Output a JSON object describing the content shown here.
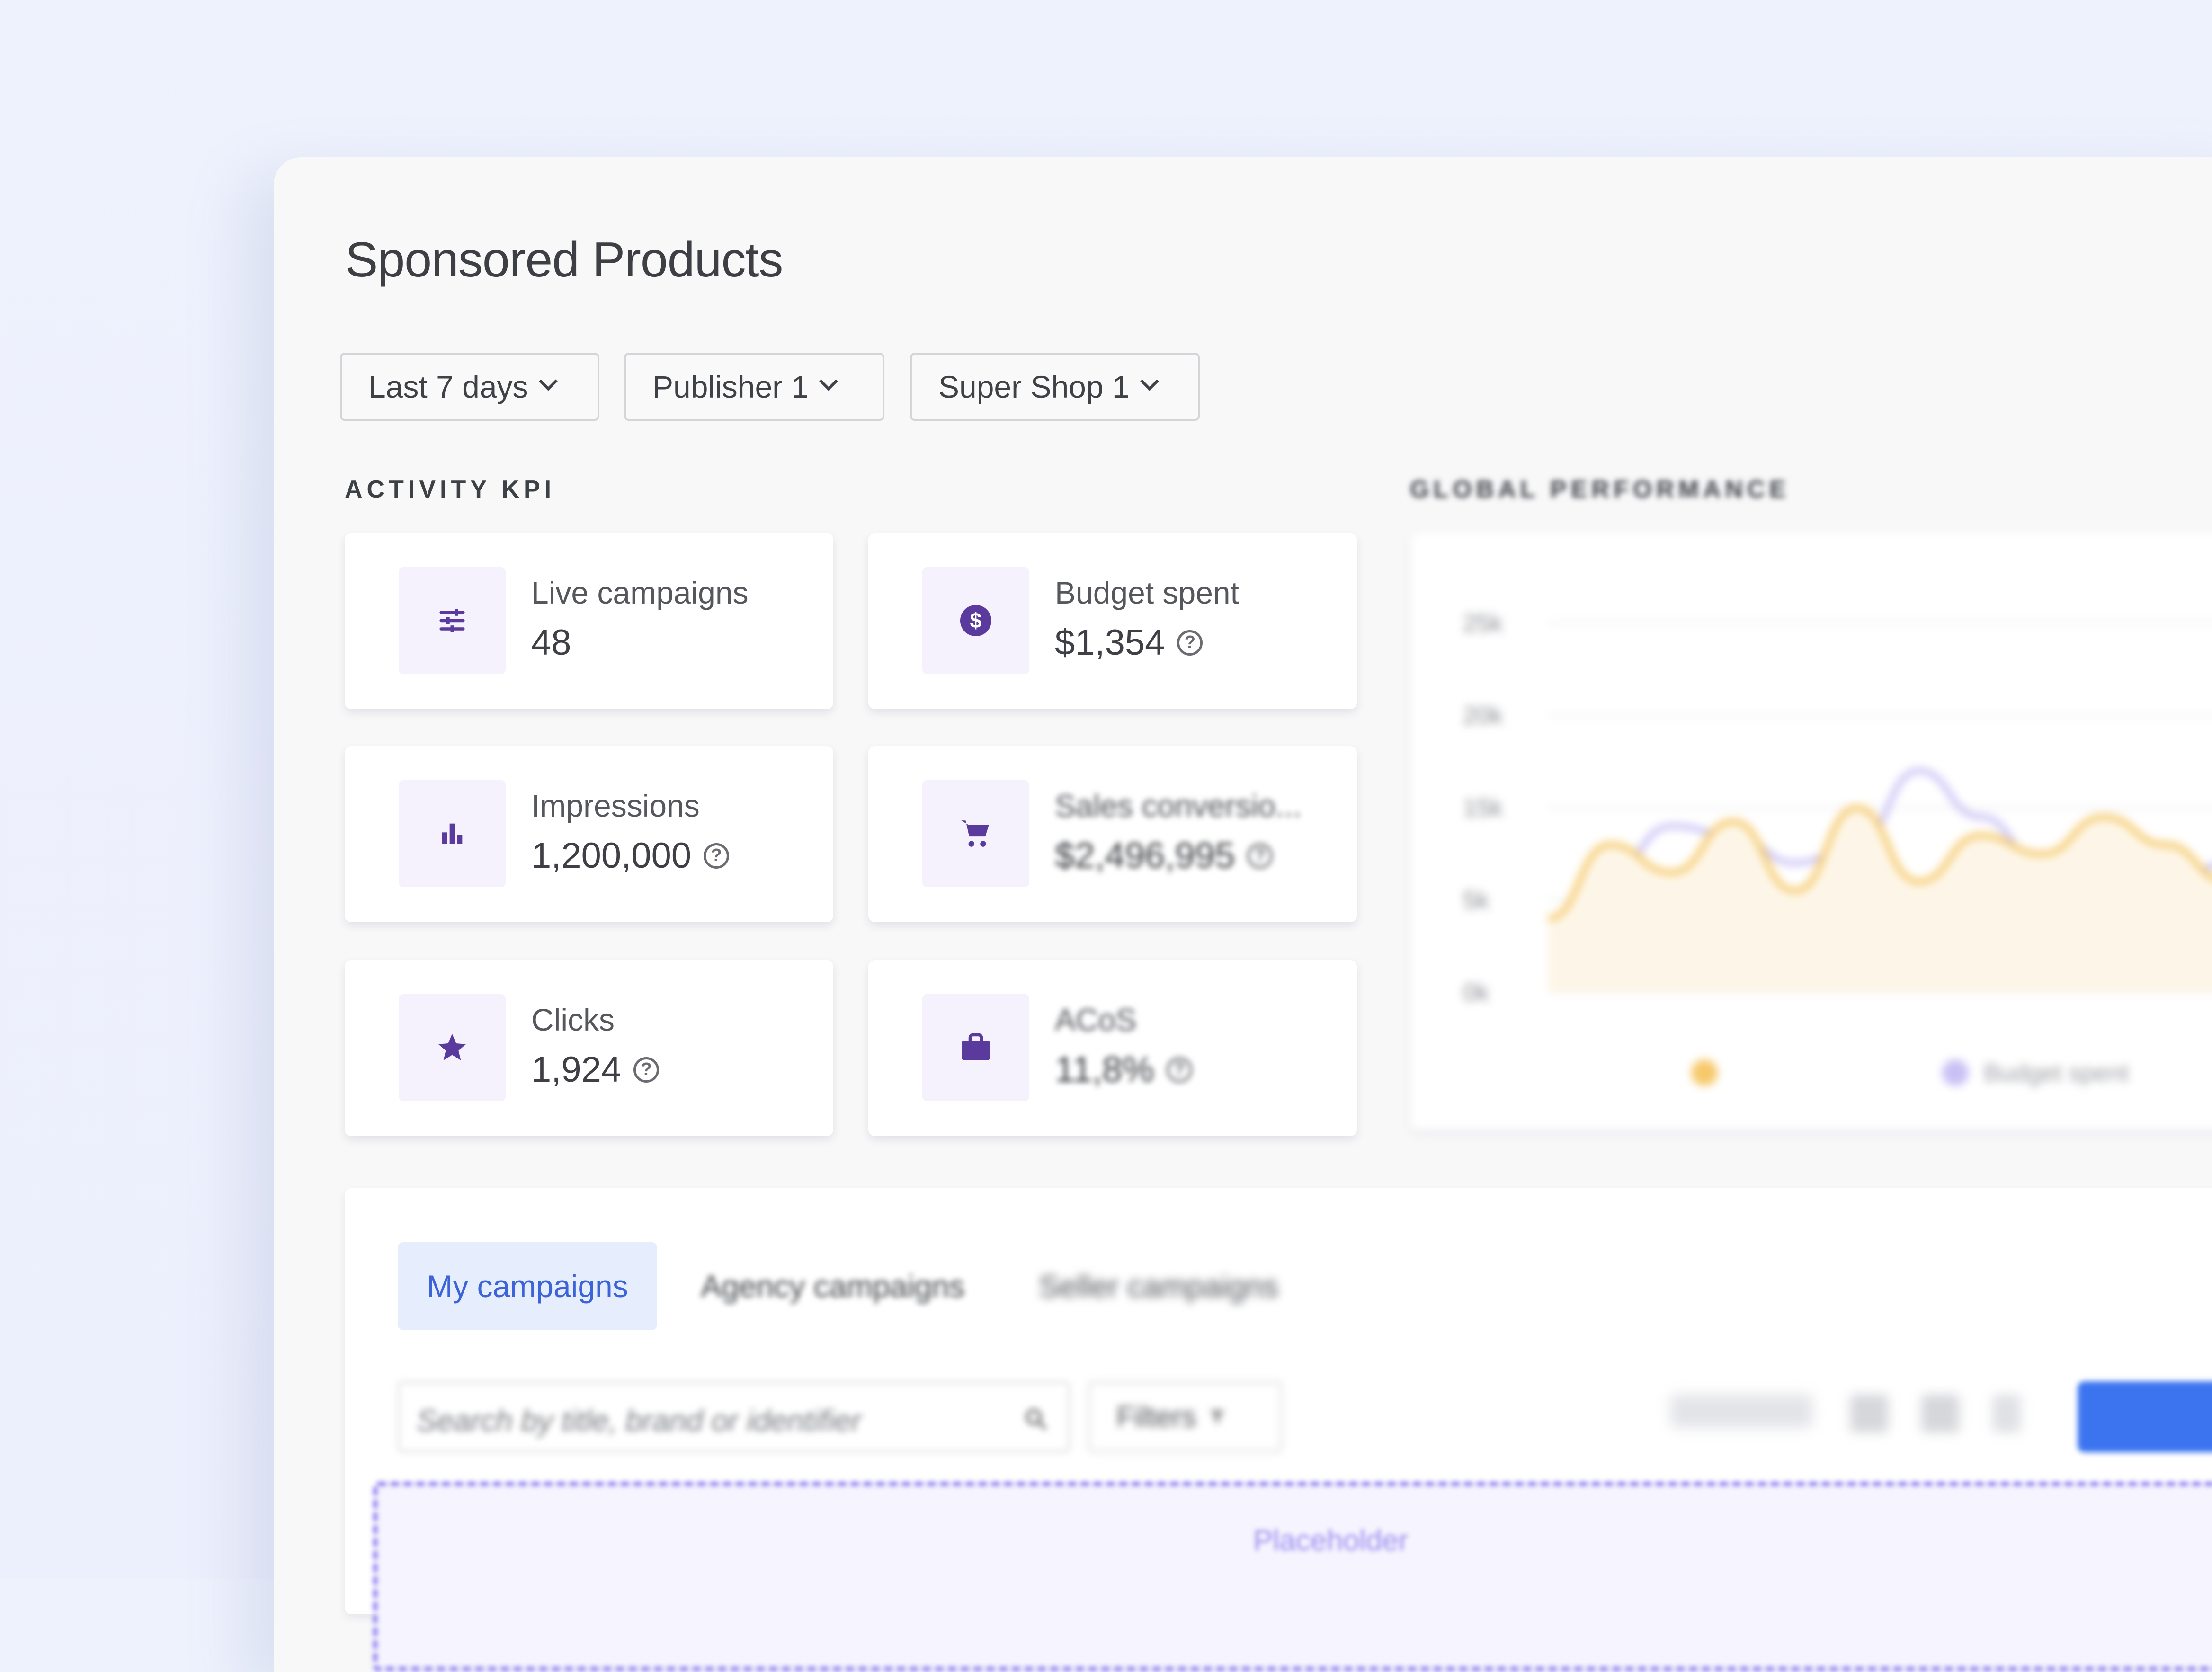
{
  "page_title": "Sponsored Products",
  "filters": [
    {
      "label": "Last 7 days"
    },
    {
      "label": "Publisher 1"
    },
    {
      "label": "Super Shop 1"
    }
  ],
  "activity_kpi": {
    "heading": "ACTIVITY KPI",
    "cards": [
      {
        "label": "Live campaigns",
        "value": "48",
        "icon": "sliders-icon",
        "help": false
      },
      {
        "label": "Budget spent",
        "value": "$1,354",
        "icon": "dollar-coin-icon",
        "help": true
      },
      {
        "label": "Impressions",
        "value": "1,200,000",
        "icon": "bar-chart-icon",
        "help": true
      },
      {
        "label": "Sales conversio...",
        "value": "$2,496,995",
        "icon": "shopping-cart-icon",
        "help": true
      },
      {
        "label": "Clicks",
        "value": "1,924",
        "icon": "star-icon",
        "help": true
      },
      {
        "label": "ACoS",
        "value": "11,8%",
        "icon": "briefcase-icon",
        "help": true
      }
    ]
  },
  "global_performance": {
    "heading": "GLOBAL PERFORMANCE",
    "legend": [
      "Budget spent"
    ]
  },
  "chart_data": {
    "type": "line",
    "title": "GLOBAL PERFORMANCE",
    "y_ticks": [
      "25k",
      "20k",
      "15k",
      "5k",
      "0k"
    ],
    "ylim": [
      0,
      25000
    ],
    "grid": true,
    "legend_placement": "bottom",
    "series": [
      {
        "name": "",
        "color": "#f6c96a",
        "values": [
          4000,
          11000,
          8000,
          13500,
          6000,
          15000,
          7000,
          12000,
          10000,
          14000,
          11000,
          7000
        ]
      },
      {
        "name": "Budget spent",
        "color": "#c9c1f5",
        "values": [
          3000,
          8000,
          13000,
          12000,
          9000,
          11000,
          17000,
          14000,
          9000,
          10000,
          6000,
          9000
        ]
      }
    ]
  },
  "campaigns": {
    "tabs": [
      "My campaigns",
      "Agency campaigns",
      "Seller campaigns"
    ],
    "search_placeholder": "Search by title, brand or identifier",
    "filters_label": "Filters",
    "placeholder_text": "Placeholder"
  },
  "colors": {
    "accent": "#5a3a9c",
    "tab_active": "#3c64d8",
    "primary_button": "#3c74f0"
  }
}
